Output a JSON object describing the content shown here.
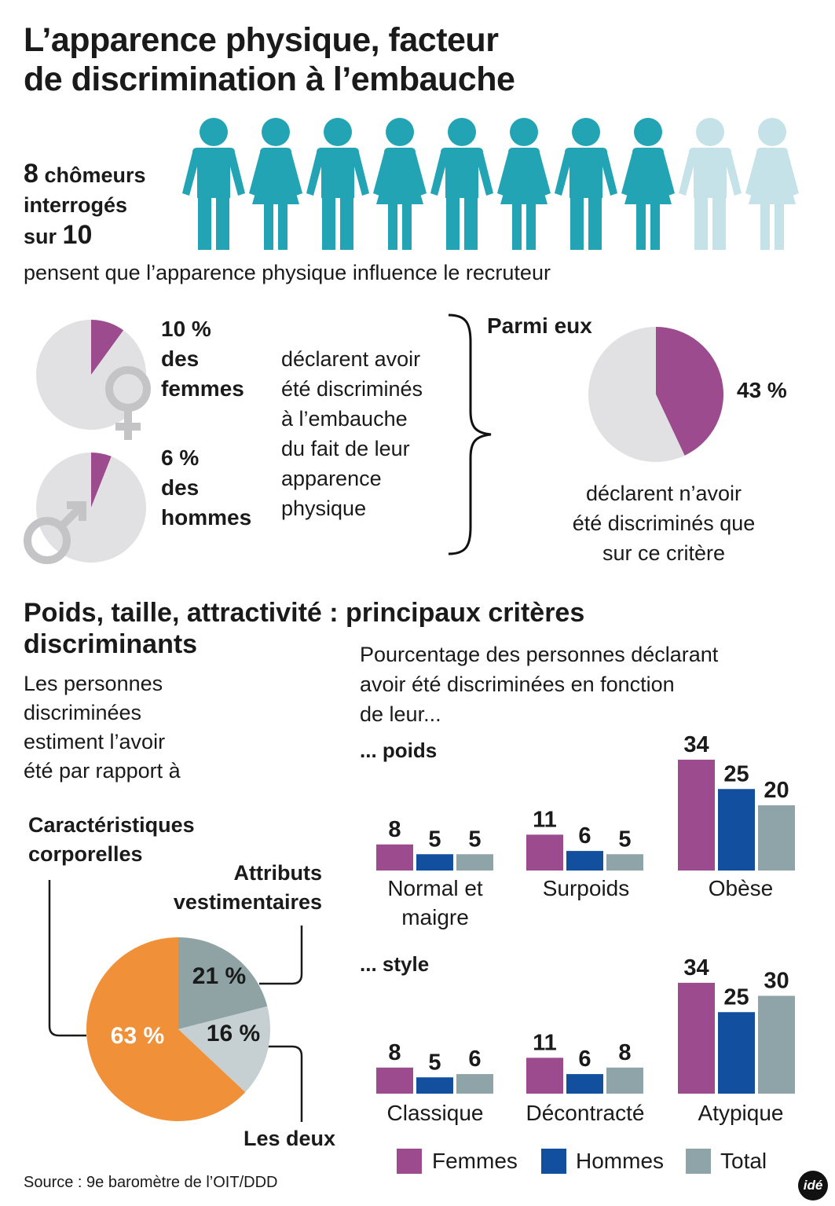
{
  "title": {
    "line1": "L’apparence physique, facteur",
    "line2": "de discrimination à l’embauche"
  },
  "colors": {
    "teal": "#23a4b5",
    "teal_light": "#c5e2e8",
    "purple": "#9b4b8e",
    "blue": "#124f9e",
    "grey_total": "#8fa4a8",
    "pie_grey": "#e1e1e3",
    "orange": "#f0913a",
    "slate": "#8fa3a5",
    "light_slate": "#c6d0d2"
  },
  "icons": [
    "man-icon",
    "woman-icon",
    "female-symbol-icon",
    "male-symbol-icon"
  ],
  "intro": {
    "count": "8",
    "word1": "chômeurs",
    "word2": "interrogés",
    "word3": "sur",
    "total": "10",
    "highlighted_people": 8,
    "people_total": 10,
    "sentence": "pensent que l’apparence physique influence le recruteur"
  },
  "discrimination": {
    "women_pct": "10 %",
    "women_l1": "des",
    "women_l2": "femmes",
    "men_pct": "6 %",
    "men_l1": "des",
    "men_l2": "hommes",
    "declare": [
      "déclarent avoir",
      "été discriminés",
      "à l’embauche",
      "du fait de leur",
      "apparence",
      "physique"
    ],
    "parmi": "Parmi eux",
    "only_pct": "43 %",
    "only_text": [
      "déclarent n’avoir",
      "été discriminés que",
      "sur ce critère"
    ]
  },
  "section2": {
    "title_l1": "Poids, taille, attractivité : principaux critères",
    "title_l2": "discriminants",
    "left_text": [
      "Les personnes",
      "discriminées",
      "estiment l’avoir",
      "été par rapport à"
    ],
    "right_text": [
      "Pourcentage des personnes déclarant",
      "avoir été discriminées en fonction",
      "de leur..."
    ],
    "pie_label_corp": [
      "Caractéristiques",
      "corporelles"
    ],
    "pie_label_vest": [
      "Attributs",
      "vestimentaires"
    ],
    "pie_label_both": "Les deux",
    "group_poids": "... poids",
    "group_style": "... style",
    "legend": [
      "Femmes",
      "Hommes",
      "Total"
    ],
    "source": "Source : 9e baromètre de l’OIT/DDD",
    "logo": "idé"
  },
  "chart_data": [
    {
      "type": "pie",
      "labels": [
        "femmes",
        "autres"
      ],
      "values": [
        10,
        90
      ],
      "data_labels": [
        "10 %"
      ]
    },
    {
      "type": "pie",
      "labels": [
        "hommes",
        "autres"
      ],
      "values": [
        6,
        94
      ],
      "data_labels": [
        "6 %"
      ]
    },
    {
      "type": "pie",
      "labels": [
        "discriminés que sur ce critère",
        "autres"
      ],
      "values": [
        43,
        57
      ],
      "data_labels": [
        "43 %"
      ]
    },
    {
      "type": "pie",
      "labels": [
        "Caractéristiques corporelles",
        "Attributs vestimentaires",
        "Les deux"
      ],
      "values": [
        63,
        21,
        16
      ],
      "data_labels": [
        "63 %",
        "21 %",
        "16 %"
      ]
    },
    {
      "type": "bar",
      "categories": [
        "Normal et maigre",
        "Surpoids",
        "Obèse"
      ],
      "series": [
        {
          "name": "Femmes",
          "values": [
            8,
            11,
            34
          ]
        },
        {
          "name": "Hommes",
          "values": [
            5,
            6,
            25
          ]
        },
        {
          "name": "Total",
          "values": [
            5,
            5,
            20
          ]
        }
      ]
    },
    {
      "type": "bar",
      "categories": [
        "Classique",
        "Décontracté",
        "Atypique"
      ],
      "series": [
        {
          "name": "Femmes",
          "values": [
            8,
            11,
            34
          ]
        },
        {
          "name": "Hommes",
          "values": [
            5,
            6,
            25
          ]
        },
        {
          "name": "Total",
          "values": [
            6,
            8,
            30
          ]
        }
      ]
    }
  ]
}
